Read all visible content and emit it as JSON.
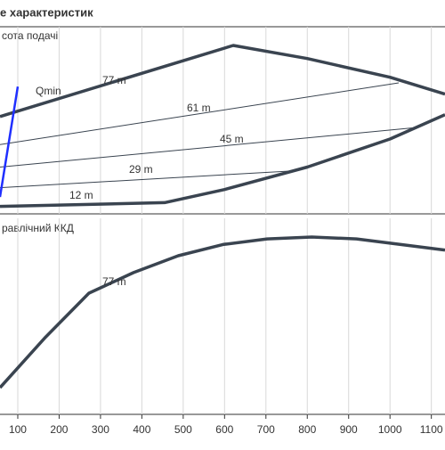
{
  "chart_data": [
    {
      "type": "line",
      "title": "е характеристик",
      "y_label": "сота подачі",
      "xlim": [
        57,
        1133
      ],
      "ylim": [
        0,
        100
      ],
      "grid": true,
      "series": [
        {
          "name": "77 m",
          "color": "#3a4450",
          "x": [
            57,
            621,
            800,
            1000,
            1133
          ],
          "values": [
            52,
            90,
            83,
            73,
            64
          ]
        },
        {
          "name": "61 m",
          "color": "#3a4450",
          "x": [
            57,
            1021
          ],
          "values": [
            37,
            70
          ]
        },
        {
          "name": "45 m",
          "color": "#3a4450",
          "x": [
            57,
            1058
          ],
          "values": [
            25,
            46
          ]
        },
        {
          "name": "29 m",
          "color": "#3a4450",
          "x": [
            57,
            767
          ],
          "values": [
            14,
            23
          ]
        },
        {
          "name": "12 m",
          "color": "#3a4450",
          "x": [
            57,
            455,
            600,
            800,
            1000,
            1133
          ],
          "values": [
            4,
            6,
            13,
            25,
            40,
            53
          ]
        },
        {
          "name": "Qmin",
          "color": "#1f2fff",
          "x": [
            100,
            57
          ],
          "values": [
            68,
            9
          ]
        }
      ]
    },
    {
      "type": "line",
      "y_label": "равлічний ККД",
      "xlim": [
        57,
        1133
      ],
      "ylim": [
        0,
        100
      ],
      "grid": true,
      "xticks": [
        100,
        200,
        300,
        400,
        500,
        600,
        700,
        800,
        900,
        1000,
        1100
      ],
      "series": [
        {
          "name": "77 m",
          "color": "#3a4450",
          "x": [
            57,
            165,
            272,
            380,
            488,
            596,
            703,
            811,
            919,
            1026,
            1133
          ],
          "values": [
            9.5,
            36,
            60,
            71,
            80,
            86,
            89,
            90,
            89,
            86,
            83
          ]
        }
      ]
    }
  ]
}
